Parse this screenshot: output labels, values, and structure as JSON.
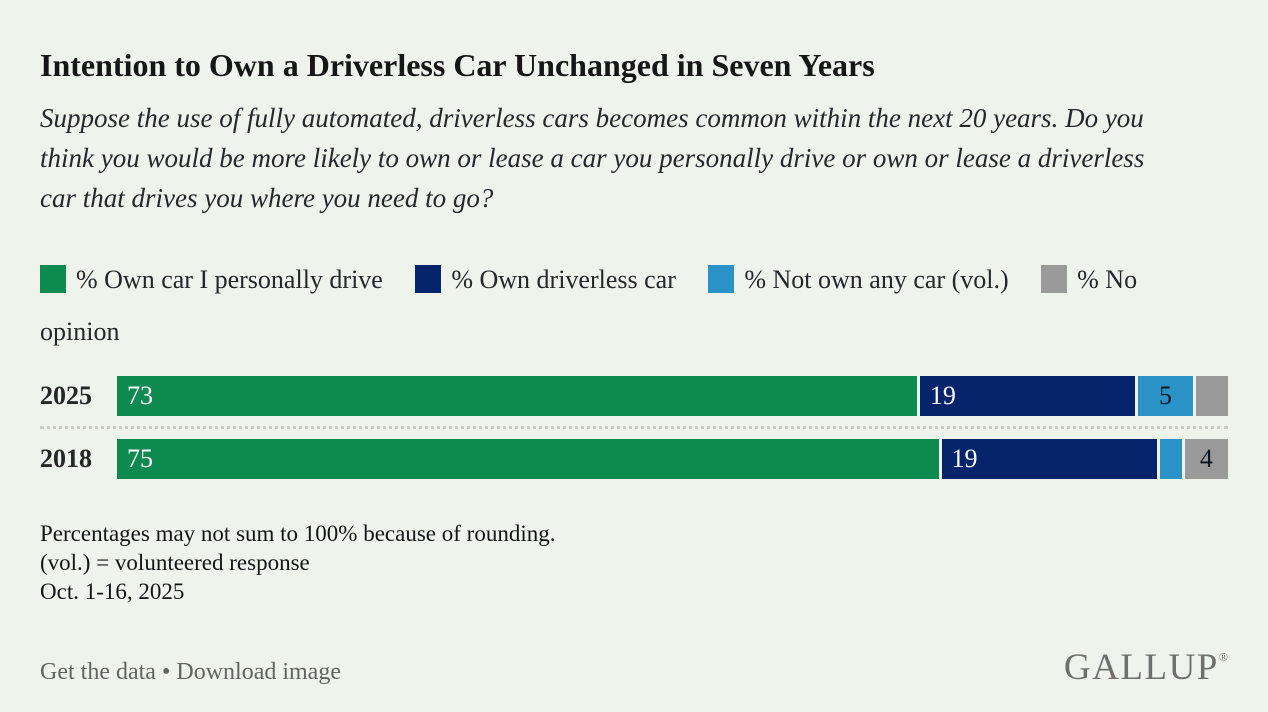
{
  "header": {
    "title": "Intention to Own a Driverless Car Unchanged in Seven Years",
    "question": "Suppose the use of fully automated, driverless cars becomes common within the next 20 years. Do you think you would be more likely to own or lease a car you personally drive or own or lease a driverless car that drives you where you need to go?"
  },
  "chart_data": {
    "type": "bar",
    "orientation": "horizontal",
    "stacked": true,
    "unit": "%",
    "xlim": [
      0,
      100
    ],
    "grid": false,
    "legend_position": "top-left",
    "categories": [
      "2025",
      "2018"
    ],
    "series": [
      {
        "name": "% Own car I personally drive",
        "color": "#0d8a50",
        "values": [
          73,
          75
        ],
        "labels": [
          "73",
          "75"
        ],
        "label_color": "#ffffff",
        "label_align": "left"
      },
      {
        "name": "% Own driverless car",
        "color": "#05246b",
        "values": [
          19,
          19
        ],
        "labels": [
          "19",
          "19"
        ],
        "label_color": "#ffffff",
        "label_align": "left"
      },
      {
        "name": "% Not own any car (vol.)",
        "color": "#2b92c8",
        "values": [
          5,
          2
        ],
        "labels": [
          "5",
          ""
        ],
        "label_color": "#0d1722",
        "label_align": "center"
      },
      {
        "name": "% No opinion",
        "color": "#9a9a9a",
        "values": [
          3,
          4
        ],
        "labels": [
          "",
          "4"
        ],
        "label_color": "#0d1722",
        "label_align": "center"
      }
    ]
  },
  "footnotes": [
    "Percentages may not sum to 100% because of rounding.",
    "(vol.) = volunteered response",
    "Oct. 1-16, 2025"
  ],
  "footer": {
    "get_data_label": "Get the data",
    "separator": "•",
    "download_label": "Download image",
    "brand": "GALLUP",
    "registered_mark": "®"
  }
}
